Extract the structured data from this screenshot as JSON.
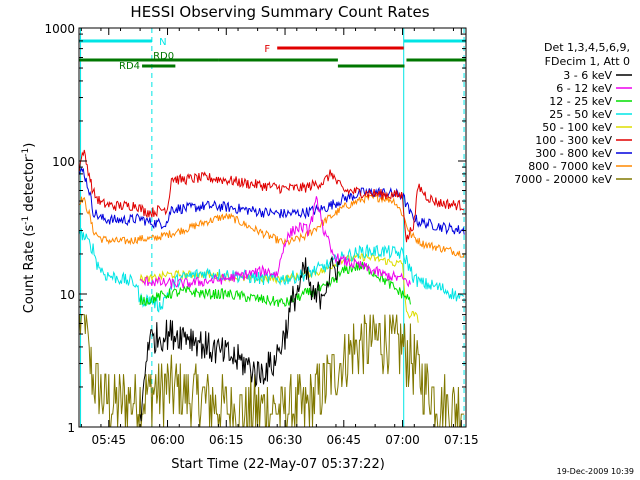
{
  "chart_data": {
    "type": "line",
    "title": "HESSI Observing Summary Count Rates",
    "xlabel": "Start Time (22-May-07 05:37:22)",
    "ylabel_main": "Count Rate (s",
    "ylabel_sup1": "-1",
    "ylabel_mid": " detector",
    "ylabel_sup2": "-1",
    "ylabel_end": ")",
    "y_scale": "log",
    "ylim": [
      1,
      1000
    ],
    "xlim_minutes": [
      37.4,
      136.2
    ],
    "x_axis_unit": "minutes after 05:00 UT",
    "x_ticks": [
      {
        "value": 45,
        "label": "05:45"
      },
      {
        "value": 60,
        "label": "06:00"
      },
      {
        "value": 75,
        "label": "06:15"
      },
      {
        "value": 90,
        "label": "06:30"
      },
      {
        "value": 105,
        "label": "06:45"
      },
      {
        "value": 120,
        "label": "07:00"
      },
      {
        "value": 135,
        "label": "07:15"
      }
    ],
    "y_ticks": [
      {
        "value": 1,
        "label": "1"
      },
      {
        "value": 10,
        "label": "10"
      },
      {
        "value": 100,
        "label": "100"
      },
      {
        "value": 1000,
        "label": "1000"
      }
    ],
    "legend_header": [
      "Det 1,3,4,5,6,9,",
      "FDecim 1, Att 0"
    ],
    "legend_position": "right",
    "timestamp": "19-Dec-2009 10:39",
    "flags": [
      {
        "label": "N",
        "color": "#00e5e5",
        "segments": [
          [
            37.4,
            56.0
          ],
          [
            120.3,
            136.2
          ]
        ],
        "row": 0
      },
      {
        "label": "F",
        "color": "#e00000",
        "segments": [
          [
            88.0,
            120.3
          ]
        ],
        "row": 1
      },
      {
        "label": "RD0",
        "color": "#007700",
        "segments": [
          [
            37.4,
            73.0
          ],
          [
            73.0,
            103.5
          ],
          [
            121.0,
            136.2
          ]
        ],
        "row": 2
      },
      {
        "label": "RD4",
        "color": "#007700",
        "segments": [
          [
            53.5,
            62.0
          ],
          [
            103.5,
            120.5
          ]
        ],
        "row": 3
      }
    ],
    "vertical_markers": [
      {
        "x": 37.8,
        "style": "solid",
        "color": "#00e5e5"
      },
      {
        "x": 56.0,
        "style": "dashed",
        "color": "#00e5e5"
      },
      {
        "x": 120.3,
        "style": "solid",
        "color": "#00e5e5"
      },
      {
        "x": 135.7,
        "style": "dashed",
        "color": "#00e5e5"
      }
    ],
    "series": [
      {
        "name": "3 - 6 keV",
        "color": "#000000",
        "gapStart": 104,
        "gapEnd": 136,
        "points": [
          [
            53,
            1.0
          ],
          [
            55,
            4.5
          ],
          [
            60,
            5
          ],
          [
            65,
            5
          ],
          [
            70,
            4
          ],
          [
            75,
            3.5
          ],
          [
            80,
            3
          ],
          [
            83,
            2.5
          ],
          [
            87,
            3
          ],
          [
            90,
            5
          ],
          [
            92,
            9
          ],
          [
            94,
            12
          ],
          [
            95,
            15
          ],
          [
            96,
            13
          ],
          [
            97,
            9
          ],
          [
            99,
            10
          ],
          [
            101,
            13
          ],
          [
            102,
            15
          ],
          [
            103,
            16
          ],
          [
            104,
            16
          ]
        ],
        "noise": 0.12
      },
      {
        "name": "6 - 12 keV",
        "color": "#ee00ee",
        "gapStart": 125,
        "gapEnd": 136,
        "points": [
          [
            53,
            12
          ],
          [
            55,
            12.5
          ],
          [
            60,
            12
          ],
          [
            65,
            12
          ],
          [
            70,
            12.5
          ],
          [
            75,
            13
          ],
          [
            80,
            14
          ],
          [
            85,
            15
          ],
          [
            88,
            14
          ],
          [
            90,
            25
          ],
          [
            92,
            30
          ],
          [
            94,
            32
          ],
          [
            96,
            30
          ],
          [
            97,
            38
          ],
          [
            98,
            50
          ],
          [
            99,
            42
          ],
          [
            100,
            28
          ],
          [
            101,
            25
          ],
          [
            102,
            20
          ],
          [
            103,
            19
          ],
          [
            104,
            18
          ],
          [
            110,
            16
          ],
          [
            115,
            14
          ],
          [
            120,
            13
          ],
          [
            122,
            12
          ]
        ],
        "noise": 0.04
      },
      {
        "name": "12 - 25 keV",
        "color": "#00dd00",
        "gapStart": 125,
        "gapEnd": 136,
        "points": [
          [
            53,
            9
          ],
          [
            55,
            9
          ],
          [
            60,
            10
          ],
          [
            65,
            10.5
          ],
          [
            70,
            10
          ],
          [
            75,
            10
          ],
          [
            80,
            9.5
          ],
          [
            85,
            9
          ],
          [
            90,
            8.5
          ],
          [
            95,
            10
          ],
          [
            100,
            11
          ],
          [
            103,
            13
          ],
          [
            105,
            15
          ],
          [
            108,
            16
          ],
          [
            110,
            16
          ],
          [
            112,
            15
          ],
          [
            115,
            13
          ],
          [
            118,
            11
          ],
          [
            120,
            10
          ],
          [
            122,
            9
          ]
        ],
        "noise": 0.04
      },
      {
        "name": "25 - 50 keV",
        "color": "#00e5e5",
        "points": [
          [
            37.5,
            30
          ],
          [
            39,
            26
          ],
          [
            41,
            22
          ],
          [
            42,
            17
          ],
          [
            44,
            14
          ],
          [
            48,
            13
          ],
          [
            52,
            12
          ],
          [
            53,
            9
          ],
          [
            56,
            9
          ],
          [
            58,
            8
          ],
          [
            60,
            10
          ],
          [
            62,
            12.5
          ],
          [
            65,
            13.5
          ],
          [
            70,
            14.5
          ],
          [
            73,
            14
          ],
          [
            75,
            14
          ],
          [
            80,
            13.5
          ],
          [
            85,
            13
          ],
          [
            88,
            13
          ],
          [
            90,
            13
          ],
          [
            95,
            14
          ],
          [
            100,
            16
          ],
          [
            105,
            19
          ],
          [
            110,
            21
          ],
          [
            115,
            21
          ],
          [
            120,
            20
          ],
          [
            121,
            18
          ],
          [
            123,
            13
          ],
          [
            125,
            12
          ],
          [
            128,
            11.5
          ],
          [
            130,
            11
          ],
          [
            133,
            10
          ],
          [
            135.8,
            9
          ]
        ],
        "noise": 0.05
      },
      {
        "name": "50 - 100 keV",
        "color": "#dddd00",
        "points": [
          [
            53,
            13
          ],
          [
            56,
            13
          ],
          [
            60,
            14
          ],
          [
            70,
            14
          ],
          [
            80,
            13
          ],
          [
            90,
            13
          ],
          [
            100,
            15
          ],
          [
            104,
            18
          ],
          [
            110,
            19
          ],
          [
            115,
            18
          ],
          [
            118,
            17
          ],
          [
            120,
            17
          ],
          [
            121,
            7
          ],
          [
            123,
            7
          ],
          [
            124,
            6.5
          ]
        ],
        "noise": 0.03
      },
      {
        "name": "100 - 300 keV",
        "color": "#e00000",
        "points": [
          [
            37.5,
            90
          ],
          [
            38.5,
            120
          ],
          [
            40,
            80
          ],
          [
            41,
            58
          ],
          [
            43,
            48
          ],
          [
            46,
            46
          ],
          [
            50,
            46
          ],
          [
            52,
            47
          ],
          [
            53,
            44
          ],
          [
            54,
            42
          ],
          [
            56,
            41
          ],
          [
            58,
            43
          ],
          [
            60,
            44
          ],
          [
            61,
            75
          ],
          [
            63,
            72
          ],
          [
            65,
            73
          ],
          [
            70,
            75
          ],
          [
            75,
            72
          ],
          [
            80,
            68
          ],
          [
            85,
            65
          ],
          [
            90,
            62
          ],
          [
            95,
            63
          ],
          [
            100,
            70
          ],
          [
            102,
            82
          ],
          [
            103,
            70
          ],
          [
            105,
            60
          ],
          [
            110,
            58
          ],
          [
            115,
            56
          ],
          [
            120,
            55
          ],
          [
            121,
            25
          ],
          [
            123,
            35
          ],
          [
            124,
            65
          ],
          [
            126,
            55
          ],
          [
            128,
            50
          ],
          [
            130,
            48
          ],
          [
            133,
            47
          ],
          [
            135.8,
            46
          ]
        ],
        "noise": 0.04
      },
      {
        "name": "300 - 800 keV",
        "color": "#0000dd",
        "points": [
          [
            37.5,
            80
          ],
          [
            38.5,
            85
          ],
          [
            40,
            60
          ],
          [
            41,
            42
          ],
          [
            43,
            37
          ],
          [
            46,
            36
          ],
          [
            50,
            36
          ],
          [
            53,
            37
          ],
          [
            55,
            35
          ],
          [
            57,
            34
          ],
          [
            59,
            34
          ],
          [
            60,
            35
          ],
          [
            61,
            44
          ],
          [
            63,
            44
          ],
          [
            65,
            44
          ],
          [
            70,
            46
          ],
          [
            75,
            45
          ],
          [
            80,
            43
          ],
          [
            85,
            41
          ],
          [
            90,
            40
          ],
          [
            95,
            41
          ],
          [
            100,
            44
          ],
          [
            105,
            52
          ],
          [
            110,
            58
          ],
          [
            115,
            58
          ],
          [
            120,
            55
          ],
          [
            122,
            40
          ],
          [
            124,
            35
          ],
          [
            128,
            33
          ],
          [
            132,
            31
          ],
          [
            135.8,
            30
          ]
        ],
        "noise": 0.04
      },
      {
        "name": "800 - 7000 keV",
        "color": "#ff8800",
        "points": [
          [
            37.5,
            50
          ],
          [
            38.5,
            52
          ],
          [
            40,
            40
          ],
          [
            41,
            30
          ],
          [
            43,
            26
          ],
          [
            46,
            25
          ],
          [
            50,
            25
          ],
          [
            53,
            26
          ],
          [
            56,
            26
          ],
          [
            60,
            28
          ],
          [
            65,
            31
          ],
          [
            70,
            35
          ],
          [
            74,
            38
          ],
          [
            76,
            38
          ],
          [
            80,
            33
          ],
          [
            85,
            28
          ],
          [
            90,
            24
          ],
          [
            95,
            27
          ],
          [
            100,
            35
          ],
          [
            105,
            45
          ],
          [
            110,
            52
          ],
          [
            115,
            53
          ],
          [
            118,
            50
          ],
          [
            120,
            40
          ],
          [
            122,
            28
          ],
          [
            125,
            24
          ],
          [
            130,
            22
          ],
          [
            135.8,
            20
          ]
        ],
        "noise": 0.03
      },
      {
        "name": "7000 - 20000 keV",
        "color": "#807800",
        "points": [
          [
            37.5,
            6
          ],
          [
            39,
            7
          ],
          [
            40,
            3
          ],
          [
            42,
            2
          ],
          [
            44,
            1.6
          ],
          [
            48,
            1.5
          ],
          [
            52,
            1.6
          ],
          [
            55,
            1.8
          ],
          [
            60,
            2
          ],
          [
            64,
            1.8
          ],
          [
            70,
            1.6
          ],
          [
            75,
            1.4
          ],
          [
            80,
            1.3
          ],
          [
            85,
            1.4
          ],
          [
            90,
            1.3
          ],
          [
            95,
            1.4
          ],
          [
            100,
            2
          ],
          [
            104,
            3
          ],
          [
            108,
            4
          ],
          [
            112,
            4.5
          ],
          [
            116,
            4.5
          ],
          [
            120,
            4
          ],
          [
            123,
            3
          ],
          [
            126,
            2
          ],
          [
            130,
            1.5
          ],
          [
            135.8,
            1.4
          ]
        ],
        "noise": 0.25
      }
    ]
  }
}
